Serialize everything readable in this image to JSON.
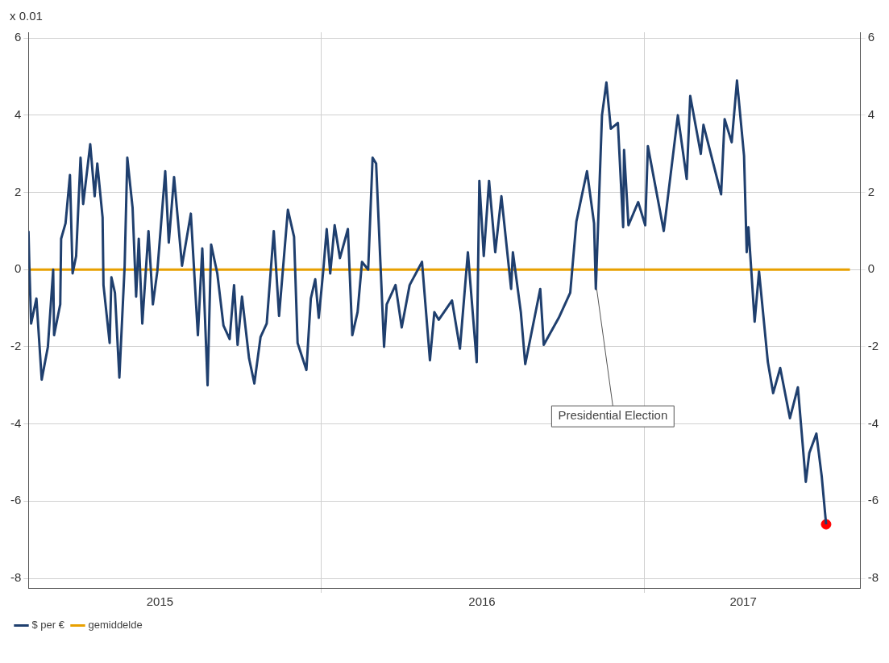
{
  "chart_data": {
    "type": "line",
    "ylabel": "x 0.01",
    "xlim": [
      "2015-02-03",
      "2017-09-03"
    ],
    "xticks": [
      {
        "value": "2015-07-02",
        "label": "2015"
      },
      {
        "value": "2016-01-01",
        "label": null
      },
      {
        "value": "2016-07-01",
        "label": "2016"
      },
      {
        "value": "2017-01-01",
        "label": null
      },
      {
        "value": "2017-04-23",
        "label": "2017"
      }
    ],
    "ylim": [
      -8.25,
      6.15
    ],
    "yticks": [
      -8,
      -6,
      -4,
      -2,
      0,
      2,
      4,
      6
    ],
    "y2lim": [
      -8.25,
      6.15
    ],
    "y2ticks": [
      -8,
      -6,
      -4,
      -2,
      0,
      2,
      4,
      6
    ],
    "grid": true,
    "legend": "bottom",
    "marker": "none",
    "line_style": "solid",
    "annotations": [
      {
        "text": "Presidential Election",
        "x": "2016-11-08",
        "y": -0.5
      }
    ],
    "series": [
      {
        "name": "$ per €",
        "color": "#1f3f6e",
        "x": [
          "2015-02-03",
          "2015-02-04",
          "2015-02-06",
          "2015-02-12",
          "2015-02-18",
          "2015-02-25",
          "2015-03-03",
          "2015-03-04",
          "2015-03-11",
          "2015-03-12",
          "2015-03-17",
          "2015-03-22",
          "2015-03-25",
          "2015-03-29",
          "2015-04-03",
          "2015-04-06",
          "2015-04-14",
          "2015-04-19",
          "2015-04-22",
          "2015-04-28",
          "2015-04-29",
          "2015-05-06",
          "2015-05-08",
          "2015-05-12",
          "2015-05-17",
          "2015-05-23",
          "2015-05-26",
          "2015-06-01",
          "2015-06-05",
          "2015-06-08",
          "2015-06-12",
          "2015-06-19",
          "2015-06-24",
          "2015-06-29",
          "2015-07-08",
          "2015-07-12",
          "2015-07-18",
          "2015-07-27",
          "2015-08-06",
          "2015-08-14",
          "2015-08-19",
          "2015-08-25",
          "2015-08-29",
          "2015-09-05",
          "2015-09-12",
          "2015-09-19",
          "2015-09-24",
          "2015-09-28",
          "2015-10-03",
          "2015-10-11",
          "2015-10-17",
          "2015-10-24",
          "2015-10-31",
          "2015-11-08",
          "2015-11-14",
          "2015-11-24",
          "2015-12-01",
          "2015-12-05",
          "2015-12-15",
          "2015-12-20",
          "2015-12-25",
          "2015-12-29",
          "2016-01-03",
          "2016-01-07",
          "2016-01-11",
          "2016-01-16",
          "2016-01-22",
          "2016-01-31",
          "2016-02-05",
          "2016-02-11",
          "2016-02-16",
          "2016-02-23",
          "2016-02-28",
          "2016-03-03",
          "2016-03-12",
          "2016-03-15",
          "2016-03-25",
          "2016-04-01",
          "2016-04-10",
          "2016-04-24",
          "2016-05-03",
          "2016-05-08",
          "2016-05-13",
          "2016-05-28",
          "2016-06-06",
          "2016-06-15",
          "2016-06-25",
          "2016-06-28",
          "2016-07-03",
          "2016-07-09",
          "2016-07-16",
          "2016-07-23",
          "2016-08-03",
          "2016-08-05",
          "2016-08-14",
          "2016-08-19",
          "2016-09-05",
          "2016-09-09",
          "2016-09-26",
          "2016-10-09",
          "2016-10-16",
          "2016-10-28",
          "2016-11-05",
          "2016-11-07",
          "2016-11-14",
          "2016-11-19",
          "2016-11-24",
          "2016-12-02",
          "2016-12-08",
          "2016-12-09",
          "2016-12-14",
          "2016-12-25",
          "2017-01-02",
          "2017-01-05",
          "2017-01-23",
          "2017-02-08",
          "2017-02-18",
          "2017-02-22",
          "2017-03-06",
          "2017-03-09",
          "2017-03-29",
          "2017-04-02",
          "2017-04-10",
          "2017-04-16",
          "2017-04-24",
          "2017-04-27",
          "2017-04-29",
          "2017-05-06",
          "2017-05-11",
          "2017-05-21",
          "2017-05-27",
          "2017-06-04",
          "2017-06-15",
          "2017-06-24",
          "2017-07-03",
          "2017-07-07",
          "2017-07-15",
          "2017-07-21",
          "2017-07-26"
        ],
        "values": [
          1.0,
          0.1,
          -1.4,
          -0.75,
          -2.85,
          -2.0,
          0,
          -1.7,
          -0.9,
          0.8,
          1.2,
          2.45,
          -0.1,
          0.35,
          2.9,
          1.7,
          3.25,
          1.9,
          2.75,
          1.35,
          -0.4,
          -1.9,
          -0.2,
          -0.6,
          -2.8,
          0.1,
          2.9,
          1.6,
          -0.7,
          0.8,
          -1.4,
          1.0,
          -0.9,
          -0.05,
          2.55,
          0.7,
          2.4,
          0.1,
          1.45,
          -1.7,
          0.55,
          -3.0,
          0.65,
          -0.1,
          -1.45,
          -1.8,
          -0.4,
          -1.95,
          -0.7,
          -2.3,
          -2.95,
          -1.75,
          -1.4,
          1.0,
          -1.2,
          1.55,
          0.85,
          -1.9,
          -2.6,
          -0.75,
          -0.25,
          -1.25,
          -0.05,
          1.05,
          -0.1,
          1.15,
          0.3,
          1.05,
          -1.7,
          -1.1,
          0.2,
          0,
          2.9,
          2.75,
          -2.0,
          -0.9,
          -0.4,
          -1.5,
          -0.4,
          0.2,
          -2.35,
          -1.1,
          -1.3,
          -0.8,
          -2.05,
          0.45,
          -2.4,
          2.3,
          0.35,
          2.3,
          0.45,
          1.9,
          -0.5,
          0.45,
          -1.1,
          -2.45,
          -0.5,
          -1.95,
          -1.25,
          -0.6,
          1.25,
          2.55,
          1.2,
          -0.5,
          4.0,
          4.85,
          3.65,
          3.8,
          1.1,
          3.1,
          1.15,
          1.75,
          1.15,
          3.2,
          1.0,
          4.0,
          2.35,
          4.5,
          3.0,
          3.75,
          1.95,
          3.9,
          3.3,
          4.9,
          2.95,
          0.45,
          1.1,
          -1.35,
          -0.05,
          -2.4,
          -3.2,
          -2.55,
          -3.85,
          -3.05,
          -5.5,
          -4.75,
          -4.25,
          -5.35,
          -6.6
        ]
      },
      {
        "name": "gemiddelde",
        "color": "#e8a000",
        "x": [
          "2015-02-03",
          "2017-08-22"
        ],
        "values": [
          0,
          0
        ]
      },
      {
        "type": "scatter",
        "color": "#ff0000",
        "marker": "circle",
        "x": [
          "2017-07-26"
        ],
        "values": [
          -6.6
        ]
      }
    ]
  }
}
